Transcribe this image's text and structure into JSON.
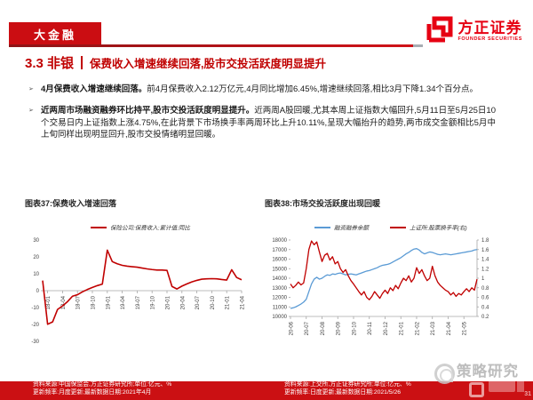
{
  "header": {
    "tag": "大金融",
    "logo_cn": "方正证券",
    "logo_en": "FOUNDER SECURITIES"
  },
  "title": {
    "section": "3.3 非银",
    "headline": "保费收入增速继续回落,股市交投活跃度明显提升"
  },
  "bullets": [
    {
      "marker": "➢",
      "lead": "4月保费收入增速继续回落。",
      "body": "前4月保费收入2.12万亿元,4月同比增加6.45%,增速继续回落,相比3月下降1.34个百分点。"
    },
    {
      "marker": "➢",
      "lead": "近两周市场融资融券环比持平,股市交投活跃度明显提升。",
      "body": "近两周A股回暖,尤其本周上证指数大幅回升,5月11日至5月25日10个交易日内上证指数上涨4.75%,在此背景下市场换手率两周环比上升10.11%,呈现大幅抬升的趋势,两市成交金额相比5月中上旬同样出现明显回升,股市交投情绪明显回暖。"
    }
  ],
  "figures": [
    {
      "caption": "图表37:保费收入增速回落",
      "source_line1": "资料来源:中国保监会,方正证券研究所;单位:亿元、%",
      "source_line2": "更新频率:月度更新;最新数据日期:2021年4月"
    },
    {
      "caption": "图表38:市场交投活跃度出现回暖",
      "source_line1": "资料来源:上交所,方正证券研究所;单位:亿元、%",
      "source_line2": "更新频率:日度更新;最新数据日期:2021/5/26"
    }
  ],
  "watermark": {
    "text": "策略研究",
    "corner_num": "31"
  },
  "colors": {
    "accent_red": "#c00000",
    "bar_red": "#cb1013",
    "line_red": "#c00000",
    "line_blue": "#5b9bd5",
    "axis_grey": "#a6a6a6",
    "axis_text": "#404040"
  },
  "chart_data": [
    {
      "type": "line",
      "title": "图表37:保费收入增速回落",
      "ylabel": "",
      "ylim": [
        -30,
        30
      ],
      "y_ticks": [
        30,
        20,
        10,
        0,
        -10,
        -20,
        -30
      ],
      "x": [
        "17-12",
        "18-01",
        "18-02",
        "18-03",
        "18-04",
        "18-05",
        "18-06",
        "18-07",
        "18-08",
        "18-09",
        "18-10",
        "18-11",
        "18-12",
        "19-01",
        "19-02",
        "19-03",
        "19-04",
        "19-05",
        "19-06",
        "19-07",
        "19-08",
        "19-09",
        "19-10",
        "19-11",
        "19-12",
        "20-01",
        "20-02",
        "20-03",
        "20-04",
        "20-05",
        "20-06",
        "20-07",
        "20-08",
        "20-09",
        "20-10",
        "20-11",
        "20-12",
        "21-01",
        "21-02",
        "21-03",
        "21-04"
      ],
      "x_tick_labels": [
        "18-01",
        "18-04",
        "18-07",
        "18-10",
        "19-01",
        "19-04",
        "19-07",
        "19-10",
        "20-01",
        "20-04",
        "20-07",
        "20-10",
        "21-01",
        "21-04"
      ],
      "series": [
        {
          "name": "保险公司:保费收入:累计值:同比",
          "color": "#c00000",
          "values": [
            6.0,
            -19.9,
            -18.5,
            -11.1,
            -9.0,
            -6.5,
            -3.3,
            -2.4,
            -0.7,
            0.7,
            1.9,
            3.0,
            3.9,
            24.0,
            17.2,
            15.9,
            15.0,
            14.5,
            14.2,
            13.9,
            13.4,
            12.9,
            12.5,
            12.2,
            12.2,
            12.0,
            2.5,
            1.0,
            2.7,
            4.0,
            5.2,
            6.1,
            6.8,
            7.0,
            7.1,
            7.0,
            6.6,
            6.3,
            12.4,
            7.8,
            6.45
          ]
        }
      ]
    },
    {
      "type": "line",
      "title": "图表38:市场交投活跃度出现回暖",
      "left_ylim": [
        10000,
        18000
      ],
      "left_ticks": [
        18000,
        17000,
        16000,
        15000,
        14000,
        13000,
        12000,
        11000,
        10000
      ],
      "right_ylim": [
        0.2,
        1.8
      ],
      "right_ticks": [
        1.8,
        1.6,
        1.4,
        1.2,
        1,
        0.8,
        0.6,
        0.4,
        0.2
      ],
      "x_tick_labels": [
        "20-06",
        "20-07",
        "20-08",
        "20-09",
        "20-10",
        "20-11",
        "20-12",
        "21-01",
        "21-02",
        "21-03",
        "21-04",
        "21-05"
      ],
      "points_per_month": 6,
      "series": [
        {
          "name": "融资融券余额",
          "axis": "left",
          "color": "#5b9bd5",
          "values": [
            10850,
            10900,
            11000,
            11150,
            11300,
            11500,
            11800,
            12600,
            13400,
            13900,
            14100,
            13900,
            14000,
            14200,
            14350,
            14300,
            14450,
            14400,
            14500,
            14550,
            14450,
            14350,
            14400,
            14450,
            14400,
            14350,
            14450,
            14550,
            14650,
            14750,
            14800,
            14900,
            15000,
            15100,
            15250,
            15350,
            15400,
            15450,
            15550,
            15700,
            15850,
            16000,
            16150,
            16350,
            16550,
            16700,
            16900,
            17050,
            17100,
            16950,
            16700,
            16550,
            16650,
            16750,
            16700,
            16600,
            16500,
            16450,
            16500,
            16550,
            16500,
            16450,
            16500,
            16550,
            16600,
            16650,
            16700,
            16750,
            16800,
            16850,
            16950,
            17000
          ]
        },
        {
          "name": "上证所:股票换手率(右)",
          "axis": "right",
          "color": "#c00000",
          "values": [
            0.88,
            0.8,
            0.85,
            0.92,
            0.86,
            0.9,
            1.2,
            1.6,
            1.78,
            1.7,
            1.76,
            1.55,
            1.35,
            1.48,
            1.52,
            1.38,
            1.45,
            1.3,
            1.35,
            1.2,
            1.12,
            1.18,
            1.05,
            0.95,
            0.88,
            0.8,
            0.72,
            0.65,
            0.72,
            0.6,
            0.55,
            0.62,
            0.72,
            0.65,
            0.58,
            0.68,
            0.75,
            0.68,
            0.8,
            0.74,
            0.85,
            0.78,
            0.9,
            1.0,
            0.95,
            1.05,
            0.92,
            1.0,
            1.22,
            1.1,
            1.18,
            1.05,
            0.95,
            1.0,
            1.25,
            1.05,
            0.92,
            0.85,
            0.8,
            0.75,
            0.72,
            0.65,
            0.7,
            0.62,
            0.68,
            0.65,
            0.72,
            0.78,
            0.72,
            0.8,
            0.75,
            0.98
          ]
        }
      ]
    }
  ]
}
